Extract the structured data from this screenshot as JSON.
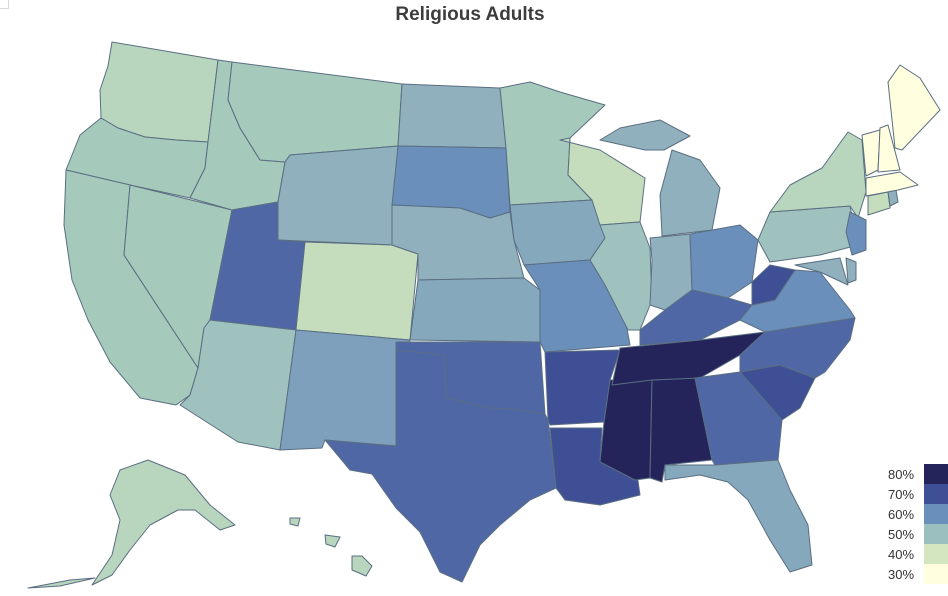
{
  "title": "Religious Adults",
  "legend": {
    "items": [
      {
        "label": "80%",
        "color": "#24245a"
      },
      {
        "label": "70%",
        "color": "#3e4f96"
      },
      {
        "label": "60%",
        "color": "#6b8fbb"
      },
      {
        "label": "50%",
        "color": "#9bbfbf"
      },
      {
        "label": "40%",
        "color": "#d3e6c0"
      },
      {
        "label": "30%",
        "color": "#ffffdf"
      }
    ]
  },
  "colors": {
    "border": "#5a6e82",
    "background": "#ffffff"
  }
}
